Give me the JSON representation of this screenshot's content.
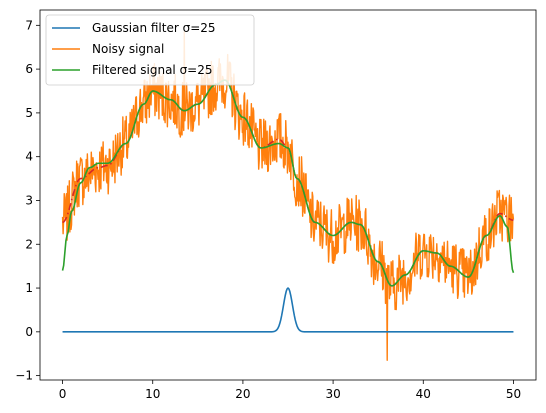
{
  "chart_data": {
    "type": "line",
    "title": "",
    "xlabel": "",
    "ylabel": "",
    "xlim": [
      -2.5,
      52.5
    ],
    "ylim": [
      -1.1,
      7.35
    ],
    "x_ticks": [
      0,
      10,
      20,
      30,
      40,
      50
    ],
    "y_ticks": [
      -1,
      0,
      1,
      2,
      3,
      4,
      5,
      6,
      7
    ],
    "grid": false,
    "legend_position": "top-left",
    "series": [
      {
        "name": "Gaussian filter σ=25",
        "color": "#1f77b4",
        "description_kind": "gaussian",
        "center": 25,
        "amplitude": 1,
        "x_range": [
          0,
          50
        ]
      },
      {
        "name": "Noisy signal",
        "color": "#ff7f0e",
        "x_range": [
          0,
          50
        ]
      },
      {
        "name": "Filtered signal σ=25",
        "color": "#2ca02c",
        "x_range": [
          0,
          50
        ]
      }
    ],
    "underlying_signal": {
      "color": "#d62728",
      "style": "dashdot",
      "points": [
        [
          0,
          2.5
        ],
        [
          2,
          3.5
        ],
        [
          4,
          3.75
        ],
        [
          5,
          3.8
        ],
        [
          7,
          4.3
        ],
        [
          9,
          5.2
        ],
        [
          10,
          5.5
        ],
        [
          12,
          5.3
        ],
        [
          13.5,
          5.05
        ],
        [
          15,
          5.2
        ],
        [
          17,
          5.65
        ],
        [
          18,
          5.75
        ],
        [
          20,
          4.9
        ],
        [
          22,
          4.2
        ],
        [
          24,
          4.4
        ],
        [
          25,
          4.2
        ],
        [
          26,
          3.5
        ],
        [
          28,
          2.5
        ],
        [
          30,
          2.2
        ],
        [
          32,
          2.5
        ],
        [
          33,
          2.45
        ],
        [
          35,
          1.6
        ],
        [
          36.5,
          1.05
        ],
        [
          38,
          1.3
        ],
        [
          40,
          1.85
        ],
        [
          41.5,
          1.8
        ],
        [
          43,
          1.5
        ],
        [
          45,
          1.25
        ],
        [
          47,
          2.2
        ],
        [
          48.5,
          2.7
        ],
        [
          50,
          2.55
        ]
      ]
    },
    "filtered_signal": {
      "points": [
        [
          0,
          1.4
        ],
        [
          0.5,
          2.2
        ],
        [
          1,
          2.75
        ],
        [
          2,
          3.4
        ],
        [
          3,
          3.75
        ],
        [
          4,
          3.85
        ],
        [
          5,
          3.85
        ],
        [
          7,
          4.3
        ],
        [
          9,
          5.2
        ],
        [
          10,
          5.5
        ],
        [
          12,
          5.3
        ],
        [
          13.5,
          5.05
        ],
        [
          15,
          5.2
        ],
        [
          17,
          5.65
        ],
        [
          18,
          5.75
        ],
        [
          20,
          4.9
        ],
        [
          22,
          4.2
        ],
        [
          24,
          4.3
        ],
        [
          25,
          4.2
        ],
        [
          26,
          3.5
        ],
        [
          28,
          2.5
        ],
        [
          30,
          2.2
        ],
        [
          32,
          2.5
        ],
        [
          33,
          2.45
        ],
        [
          35,
          1.6
        ],
        [
          36.5,
          1.05
        ],
        [
          38,
          1.3
        ],
        [
          40,
          1.85
        ],
        [
          41.5,
          1.8
        ],
        [
          43,
          1.5
        ],
        [
          45,
          1.25
        ],
        [
          47,
          2.2
        ],
        [
          48.5,
          2.65
        ],
        [
          49.3,
          2.4
        ],
        [
          50,
          1.35
        ]
      ]
    },
    "noise": {
      "amplitude": 0.65,
      "samples": 800,
      "min_point": [
        36,
        -0.65
      ],
      "max_point": [
        13.5,
        6.85
      ]
    }
  },
  "legend": {
    "item1": "Gaussian filter σ=25",
    "item2": "Noisy signal",
    "item3": "Filtered signal σ=25"
  }
}
